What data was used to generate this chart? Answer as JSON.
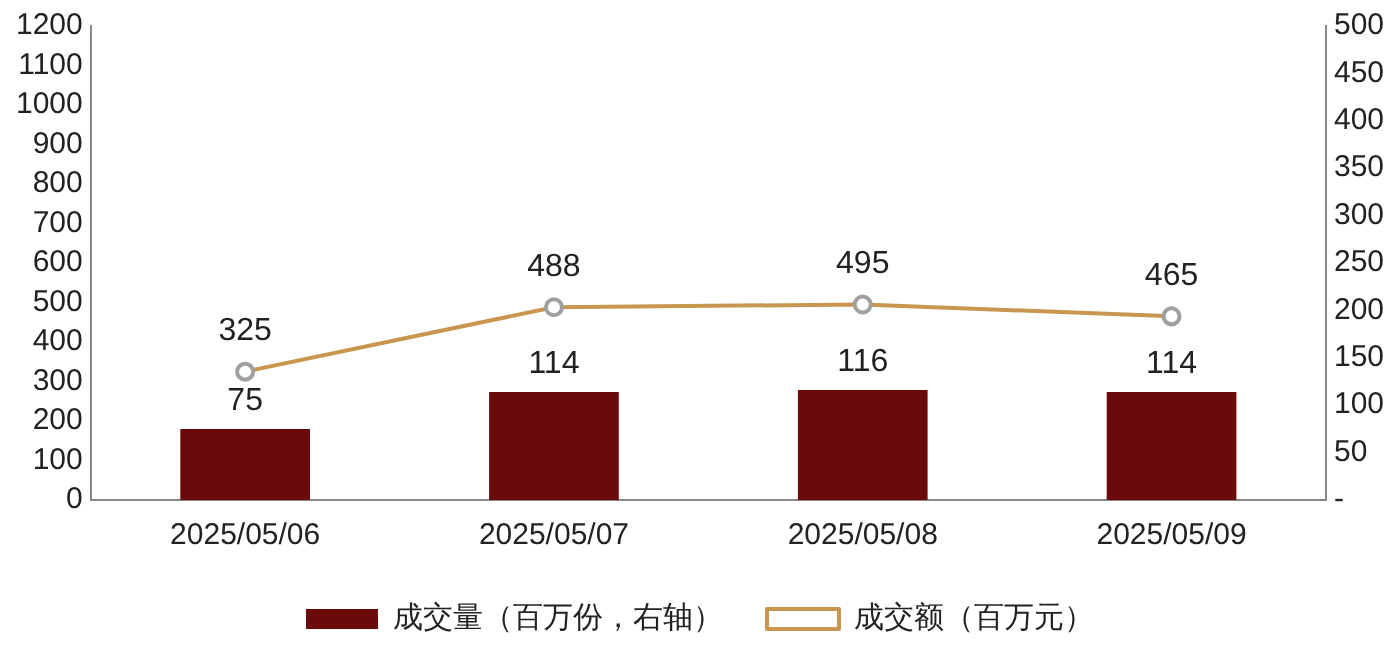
{
  "chart_data": {
    "type": "bar",
    "categories": [
      "2025/05/06",
      "2025/05/07",
      "2025/05/08",
      "2025/05/09"
    ],
    "series": [
      {
        "name": "成交量（百万份，右轴）",
        "axis": "y2",
        "color": "#6b0a0a",
        "values": [
          75,
          114,
          116,
          114
        ]
      },
      {
        "name": "成交额（百万元）",
        "type": "line",
        "axis": "y",
        "color": "#c8964e",
        "marker": "circle",
        "values": [
          325,
          488,
          495,
          465
        ]
      }
    ],
    "ylim": [
      0,
      1200
    ],
    "yticks": [
      0,
      100,
      200,
      300,
      400,
      500,
      600,
      700,
      800,
      900,
      1000,
      1100,
      1200
    ],
    "y2lim": [
      0,
      500
    ],
    "y2ticks": [
      {
        "value": 0,
        "label": "-"
      },
      50,
      100,
      150,
      200,
      250,
      300,
      350,
      400,
      450,
      500
    ],
    "data_labels": true,
    "grid": false,
    "legend": "bottom"
  }
}
